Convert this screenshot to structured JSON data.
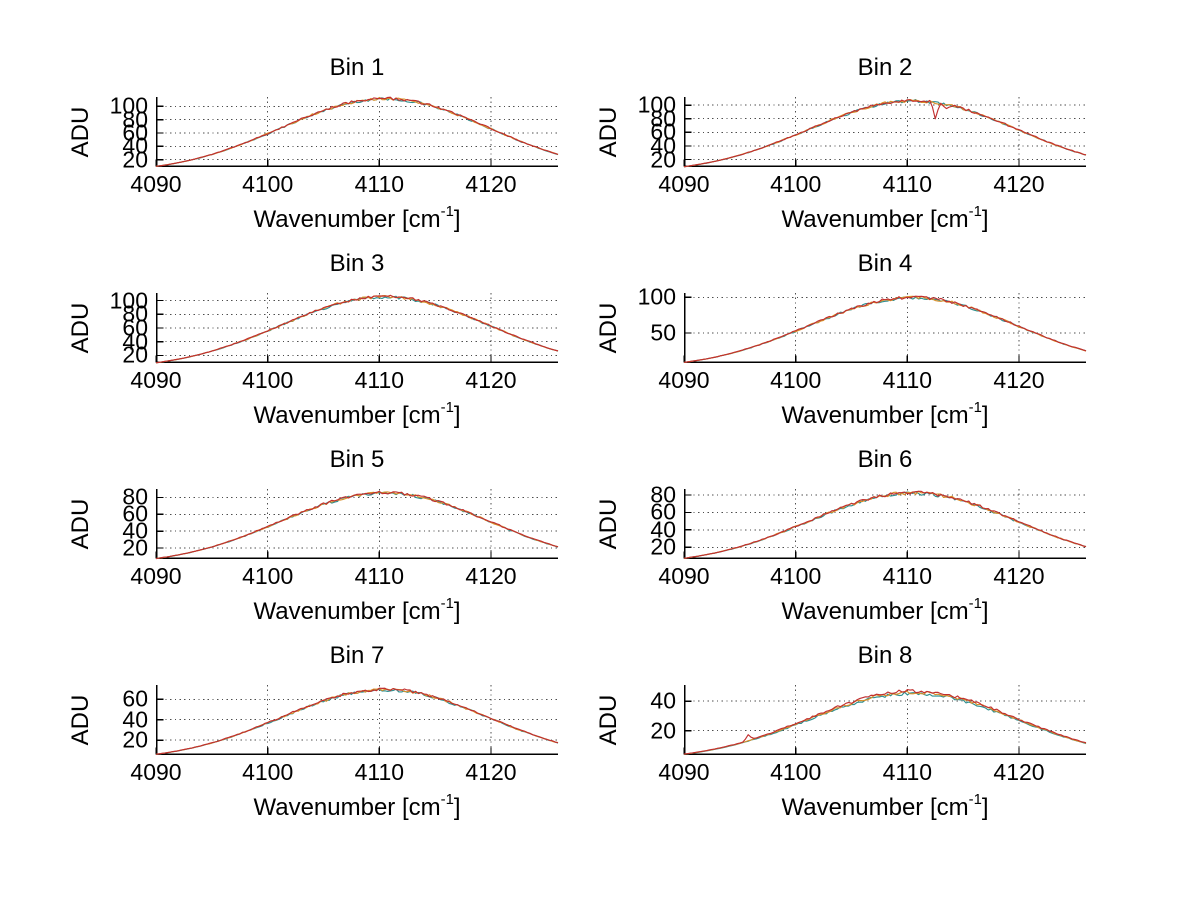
{
  "figure": {
    "background": "#ffffff",
    "grid_color": "#4d4d4d",
    "axis_color": "#000000",
    "rows": 4,
    "cols": 2
  },
  "chart_data": [
    {
      "type": "line",
      "title": "Bin 1",
      "ylabel": "ADU",
      "xlabel": "Wavenumber [cm⁻¹]",
      "xlabel_main": "Wavenumber [cm",
      "xlabel_sup": "-1",
      "xlabel_end": "]",
      "xlim": [
        4090,
        4126
      ],
      "ylim": [
        9,
        114
      ],
      "xticks": [
        4090,
        4100,
        4110,
        4120
      ],
      "yticks": [
        20,
        40,
        60,
        80,
        100
      ],
      "grid": true,
      "legend": "none",
      "x": [
        4090,
        4091,
        4092,
        4093,
        4094,
        4095,
        4096,
        4097,
        4098,
        4099,
        4100,
        4101,
        4102,
        4103,
        4104,
        4105,
        4106,
        4107,
        4108,
        4109,
        4110,
        4111,
        4112,
        4113,
        4114,
        4115,
        4116,
        4117,
        4118,
        4119,
        4120,
        4121,
        4122,
        4123,
        4124,
        4125,
        4126
      ],
      "values": [
        9.9,
        12.4,
        15.5,
        19.0,
        23.2,
        27.9,
        33.3,
        39.1,
        45.4,
        52.2,
        59.2,
        66.4,
        73.8,
        80.9,
        87.7,
        94.0,
        99.7,
        104.4,
        108.0,
        110.5,
        111.9,
        111.9,
        110.5,
        108.0,
        104.4,
        99.7,
        94.0,
        87.7,
        80.9,
        73.8,
        66.4,
        59.2,
        52.2,
        45.4,
        39.1,
        33.3,
        28.0
      ],
      "noise": 2.1,
      "series": [
        {
          "name": "trace-teal",
          "color": "#2e8f8f",
          "offset": -0.9
        },
        {
          "name": "trace-orange",
          "color": "#d98e28",
          "offset": -0.45
        },
        {
          "name": "trace-red",
          "color": "#c12f2f",
          "offset": 0
        }
      ],
      "spikes": []
    },
    {
      "type": "line",
      "title": "Bin 2",
      "ylabel": "ADU",
      "xlabel": "Wavenumber [cm⁻¹]",
      "xlabel_main": "Wavenumber [cm",
      "xlabel_sup": "-1",
      "xlabel_end": "]",
      "xlim": [
        4090,
        4126
      ],
      "ylim": [
        9,
        112
      ],
      "xticks": [
        4090,
        4100,
        4110,
        4120
      ],
      "yticks": [
        20,
        40,
        60,
        80,
        100
      ],
      "grid": true,
      "legend": "none",
      "x": [
        4090,
        4091,
        4092,
        4093,
        4094,
        4095,
        4096,
        4097,
        4098,
        4099,
        4100,
        4101,
        4102,
        4103,
        4104,
        4105,
        4106,
        4107,
        4108,
        4109,
        4110,
        4111,
        4112,
        4113,
        4114,
        4115,
        4116,
        4117,
        4118,
        4119,
        4120,
        4121,
        4122,
        4123,
        4124,
        4125,
        4126
      ],
      "values": [
        9.4,
        11.9,
        14.8,
        18.2,
        22.1,
        26.6,
        31.8,
        37.3,
        43.3,
        49.9,
        56.6,
        63.5,
        70.5,
        77.3,
        83.8,
        89.8,
        95.2,
        99.7,
        103.2,
        105.6,
        106.9,
        106.9,
        105.6,
        103.2,
        99.7,
        95.2,
        89.8,
        83.8,
        77.3,
        70.5,
        63.5,
        56.6,
        49.9,
        43.3,
        37.3,
        31.8,
        26.8
      ],
      "noise": 2.2,
      "series": [
        {
          "name": "trace-teal",
          "color": "#2e8f8f",
          "offset": -0.9
        },
        {
          "name": "trace-orange",
          "color": "#d98e28",
          "offset": -0.45
        },
        {
          "name": "trace-red",
          "color": "#c12f2f",
          "offset": 0
        }
      ],
      "spikes": [
        {
          "x": 4112.5,
          "dy": -23,
          "series": "trace-red"
        },
        {
          "x": 4113.5,
          "dy": -7,
          "series": "trace-red"
        }
      ]
    },
    {
      "type": "line",
      "title": "Bin 3",
      "ylabel": "ADU",
      "xlabel": "Wavenumber [cm⁻¹]",
      "xlabel_main": "Wavenumber [cm",
      "xlabel_sup": "-1",
      "xlabel_end": "]",
      "xlim": [
        4090,
        4126
      ],
      "ylim": [
        9,
        111
      ],
      "xticks": [
        4090,
        4100,
        4110,
        4120
      ],
      "yticks": [
        20,
        40,
        60,
        80,
        100
      ],
      "grid": true,
      "legend": "none",
      "x": [
        4090,
        4091,
        4092,
        4093,
        4094,
        4095,
        4096,
        4097,
        4098,
        4099,
        4100,
        4101,
        4102,
        4103,
        4104,
        4105,
        4106,
        4107,
        4108,
        4109,
        4110,
        4111,
        4112,
        4113,
        4114,
        4115,
        4116,
        4117,
        4118,
        4119,
        4120,
        4121,
        4122,
        4123,
        4124,
        4125,
        4126
      ],
      "values": [
        9.3,
        11.8,
        14.6,
        18.0,
        21.9,
        26.4,
        31.5,
        37.0,
        42.9,
        49.4,
        56.1,
        62.9,
        69.9,
        76.5,
        83.0,
        88.9,
        94.3,
        98.8,
        102.2,
        104.6,
        105.9,
        105.9,
        104.6,
        102.2,
        98.8,
        94.3,
        88.9,
        83.0,
        76.5,
        69.9,
        62.9,
        56.1,
        49.4,
        42.9,
        37.0,
        31.5,
        26.5
      ],
      "noise": 2.0,
      "series": [
        {
          "name": "trace-teal",
          "color": "#2e8f8f",
          "offset": -0.9
        },
        {
          "name": "trace-orange",
          "color": "#d98e28",
          "offset": -0.45
        },
        {
          "name": "trace-red",
          "color": "#c12f2f",
          "offset": 0
        }
      ],
      "spikes": []
    },
    {
      "type": "line",
      "title": "Bin 4",
      "ylabel": "ADU",
      "xlabel": "Wavenumber [cm⁻¹]",
      "xlabel_main": "Wavenumber [cm",
      "xlabel_sup": "-1",
      "xlabel_end": "]",
      "xlim": [
        4090,
        4126
      ],
      "ylim": [
        8,
        106
      ],
      "xticks": [
        4090,
        4100,
        4110,
        4120
      ],
      "yticks": [
        50,
        100
      ],
      "grid": true,
      "legend": "none",
      "x": [
        4090,
        4091,
        4092,
        4093,
        4094,
        4095,
        4096,
        4097,
        4098,
        4099,
        4100,
        4101,
        4102,
        4103,
        4104,
        4105,
        4106,
        4107,
        4108,
        4109,
        4110,
        4111,
        4112,
        4113,
        4114,
        4115,
        4116,
        4117,
        4118,
        4119,
        4120,
        4121,
        4122,
        4123,
        4124,
        4125,
        4126
      ],
      "values": [
        8.8,
        11.1,
        13.8,
        17.0,
        20.7,
        24.9,
        29.7,
        34.9,
        40.5,
        46.6,
        52.9,
        59.3,
        65.9,
        72.2,
        78.3,
        83.9,
        89.0,
        93.2,
        96.4,
        98.7,
        99.9,
        99.9,
        98.7,
        96.4,
        93.2,
        89.0,
        83.9,
        78.3,
        72.2,
        65.9,
        59.3,
        52.9,
        46.6,
        40.5,
        34.9,
        29.7,
        25.0
      ],
      "noise": 2.1,
      "series": [
        {
          "name": "trace-teal",
          "color": "#2e8f8f",
          "offset": -0.9
        },
        {
          "name": "trace-orange",
          "color": "#d98e28",
          "offset": -0.45
        },
        {
          "name": "trace-red",
          "color": "#c12f2f",
          "offset": 0
        }
      ],
      "spikes": []
    },
    {
      "type": "line",
      "title": "Bin 5",
      "ylabel": "ADU",
      "xlabel": "Wavenumber [cm⁻¹]",
      "xlabel_main": "Wavenumber [cm",
      "xlabel_sup": "-1",
      "xlabel_end": "]",
      "xlim": [
        4090,
        4126
      ],
      "ylim": [
        7,
        90
      ],
      "xticks": [
        4090,
        4100,
        4110,
        4120
      ],
      "yticks": [
        20,
        40,
        60,
        80
      ],
      "grid": true,
      "legend": "none",
      "x": [
        4090,
        4091,
        4092,
        4093,
        4094,
        4095,
        4096,
        4097,
        4098,
        4099,
        4100,
        4101,
        4102,
        4103,
        4104,
        4105,
        4106,
        4107,
        4108,
        4109,
        4110,
        4111,
        4112,
        4113,
        4114,
        4115,
        4116,
        4117,
        4118,
        4119,
        4120,
        4121,
        4122,
        4123,
        4124,
        4125,
        4126
      ],
      "values": [
        7.6,
        9.5,
        11.9,
        14.6,
        17.8,
        21.4,
        25.5,
        30.0,
        34.8,
        40.1,
        45.5,
        51.0,
        56.7,
        62.1,
        67.3,
        72.2,
        76.5,
        80.2,
        82.9,
        84.9,
        85.9,
        85.9,
        84.9,
        82.9,
        80.2,
        76.5,
        72.2,
        67.3,
        62.1,
        56.7,
        51.0,
        45.5,
        40.1,
        34.8,
        30.0,
        25.5,
        21.5
      ],
      "noise": 1.7,
      "series": [
        {
          "name": "trace-teal",
          "color": "#2e8f8f",
          "offset": -0.8
        },
        {
          "name": "trace-orange",
          "color": "#d98e28",
          "offset": -0.4
        },
        {
          "name": "trace-red",
          "color": "#c12f2f",
          "offset": 0
        }
      ],
      "spikes": []
    },
    {
      "type": "line",
      "title": "Bin 6",
      "ylabel": "ADU",
      "xlabel": "Wavenumber [cm⁻¹]",
      "xlabel_main": "Wavenumber [cm",
      "xlabel_sup": "-1",
      "xlabel_end": "]",
      "xlim": [
        4090,
        4126
      ],
      "ylim": [
        6.5,
        87
      ],
      "xticks": [
        4090,
        4100,
        4110,
        4120
      ],
      "yticks": [
        20,
        40,
        60,
        80
      ],
      "grid": true,
      "legend": "none",
      "x": [
        4090,
        4091,
        4092,
        4093,
        4094,
        4095,
        4096,
        4097,
        4098,
        4099,
        4100,
        4101,
        4102,
        4103,
        4104,
        4105,
        4106,
        4107,
        4108,
        4109,
        4110,
        4111,
        4112,
        4113,
        4114,
        4115,
        4116,
        4117,
        4118,
        4119,
        4120,
        4121,
        4122,
        4123,
        4124,
        4125,
        4126
      ],
      "values": [
        7.3,
        9.2,
        11.5,
        14.1,
        17.2,
        20.7,
        24.7,
        29.0,
        33.6,
        38.7,
        43.9,
        49.2,
        54.7,
        59.9,
        65.0,
        69.6,
        73.9,
        77.4,
        80.0,
        81.9,
        82.9,
        82.9,
        81.9,
        80.0,
        77.4,
        73.9,
        69.6,
        65.0,
        59.9,
        54.7,
        49.2,
        43.9,
        38.7,
        33.6,
        29.0,
        24.7,
        20.8
      ],
      "noise": 2.0,
      "series": [
        {
          "name": "trace-teal",
          "color": "#2e8f8f",
          "offset": -0.8
        },
        {
          "name": "trace-orange",
          "color": "#d98e28",
          "offset": -0.4
        },
        {
          "name": "trace-red",
          "color": "#c12f2f",
          "offset": 0
        }
      ],
      "spikes": []
    },
    {
      "type": "line",
      "title": "Bin 7",
      "ylabel": "ADU",
      "xlabel": "Wavenumber [cm⁻¹]",
      "xlabel_main": "Wavenumber [cm",
      "xlabel_sup": "-1",
      "xlabel_end": "]",
      "xlim": [
        4090,
        4126
      ],
      "ylim": [
        5.5,
        74
      ],
      "xticks": [
        4090,
        4100,
        4110,
        4120
      ],
      "yticks": [
        20,
        40,
        60
      ],
      "grid": true,
      "legend": "none",
      "x": [
        4090,
        4091,
        4092,
        4093,
        4094,
        4095,
        4096,
        4097,
        4098,
        4099,
        4100,
        4101,
        4102,
        4103,
        4104,
        4105,
        4106,
        4107,
        4108,
        4109,
        4110,
        4111,
        4112,
        4113,
        4114,
        4115,
        4116,
        4117,
        4118,
        4119,
        4120,
        4121,
        4122,
        4123,
        4124,
        4125,
        4126
      ],
      "values": [
        6.2,
        7.8,
        9.7,
        11.9,
        14.5,
        17.4,
        20.8,
        24.4,
        28.4,
        32.6,
        37.0,
        41.5,
        46.1,
        50.5,
        54.8,
        58.7,
        62.3,
        65.2,
        67.5,
        69.1,
        69.9,
        69.9,
        69.1,
        67.5,
        65.2,
        62.3,
        58.7,
        54.8,
        50.5,
        46.1,
        41.5,
        37.0,
        32.6,
        28.4,
        24.4,
        20.8,
        17.5
      ],
      "noise": 1.5,
      "series": [
        {
          "name": "trace-teal",
          "color": "#2e8f8f",
          "offset": -0.7
        },
        {
          "name": "trace-orange",
          "color": "#d98e28",
          "offset": -0.35
        },
        {
          "name": "trace-red",
          "color": "#c12f2f",
          "offset": 0
        }
      ],
      "spikes": []
    },
    {
      "type": "line",
      "title": "Bin 8",
      "ylabel": "ADU",
      "xlabel": "Wavenumber [cm⁻¹]",
      "xlabel_main": "Wavenumber [cm",
      "xlabel_sup": "-1",
      "xlabel_end": "]",
      "xlim": [
        4090,
        4126
      ],
      "ylim": [
        3.5,
        51
      ],
      "xticks": [
        4090,
        4100,
        4110,
        4120
      ],
      "yticks": [
        20,
        40
      ],
      "grid": true,
      "legend": "none",
      "x": [
        4090,
        4091,
        4092,
        4093,
        4094,
        4095,
        4096,
        4097,
        4098,
        4099,
        4100,
        4101,
        4102,
        4103,
        4104,
        4105,
        4106,
        4107,
        4108,
        4109,
        4110,
        4111,
        4112,
        4113,
        4114,
        4115,
        4116,
        4117,
        4118,
        4119,
        4120,
        4121,
        4122,
        4123,
        4124,
        4125,
        4126
      ],
      "values": [
        4.1,
        5.2,
        6.5,
        8.0,
        9.7,
        11.7,
        14.0,
        16.4,
        19.0,
        21.9,
        24.9,
        27.9,
        31.0,
        33.9,
        36.8,
        39.4,
        41.8,
        43.8,
        45.3,
        46.4,
        46.9,
        46.9,
        46.4,
        45.3,
        43.8,
        41.8,
        39.4,
        36.8,
        33.9,
        31.0,
        27.9,
        24.9,
        21.9,
        19.0,
        16.4,
        14.0,
        11.8
      ],
      "noise": 1.1,
      "series": [
        {
          "name": "trace-teal",
          "color": "#2e8f8f",
          "offset": -1.7
        },
        {
          "name": "trace-orange",
          "color": "#d98e28",
          "offset": -0.85
        },
        {
          "name": "trace-red",
          "color": "#c12f2f",
          "offset": 0
        }
      ],
      "spikes": [
        {
          "x": 4095.75,
          "dy": 4,
          "series": "trace-red"
        }
      ]
    }
  ]
}
